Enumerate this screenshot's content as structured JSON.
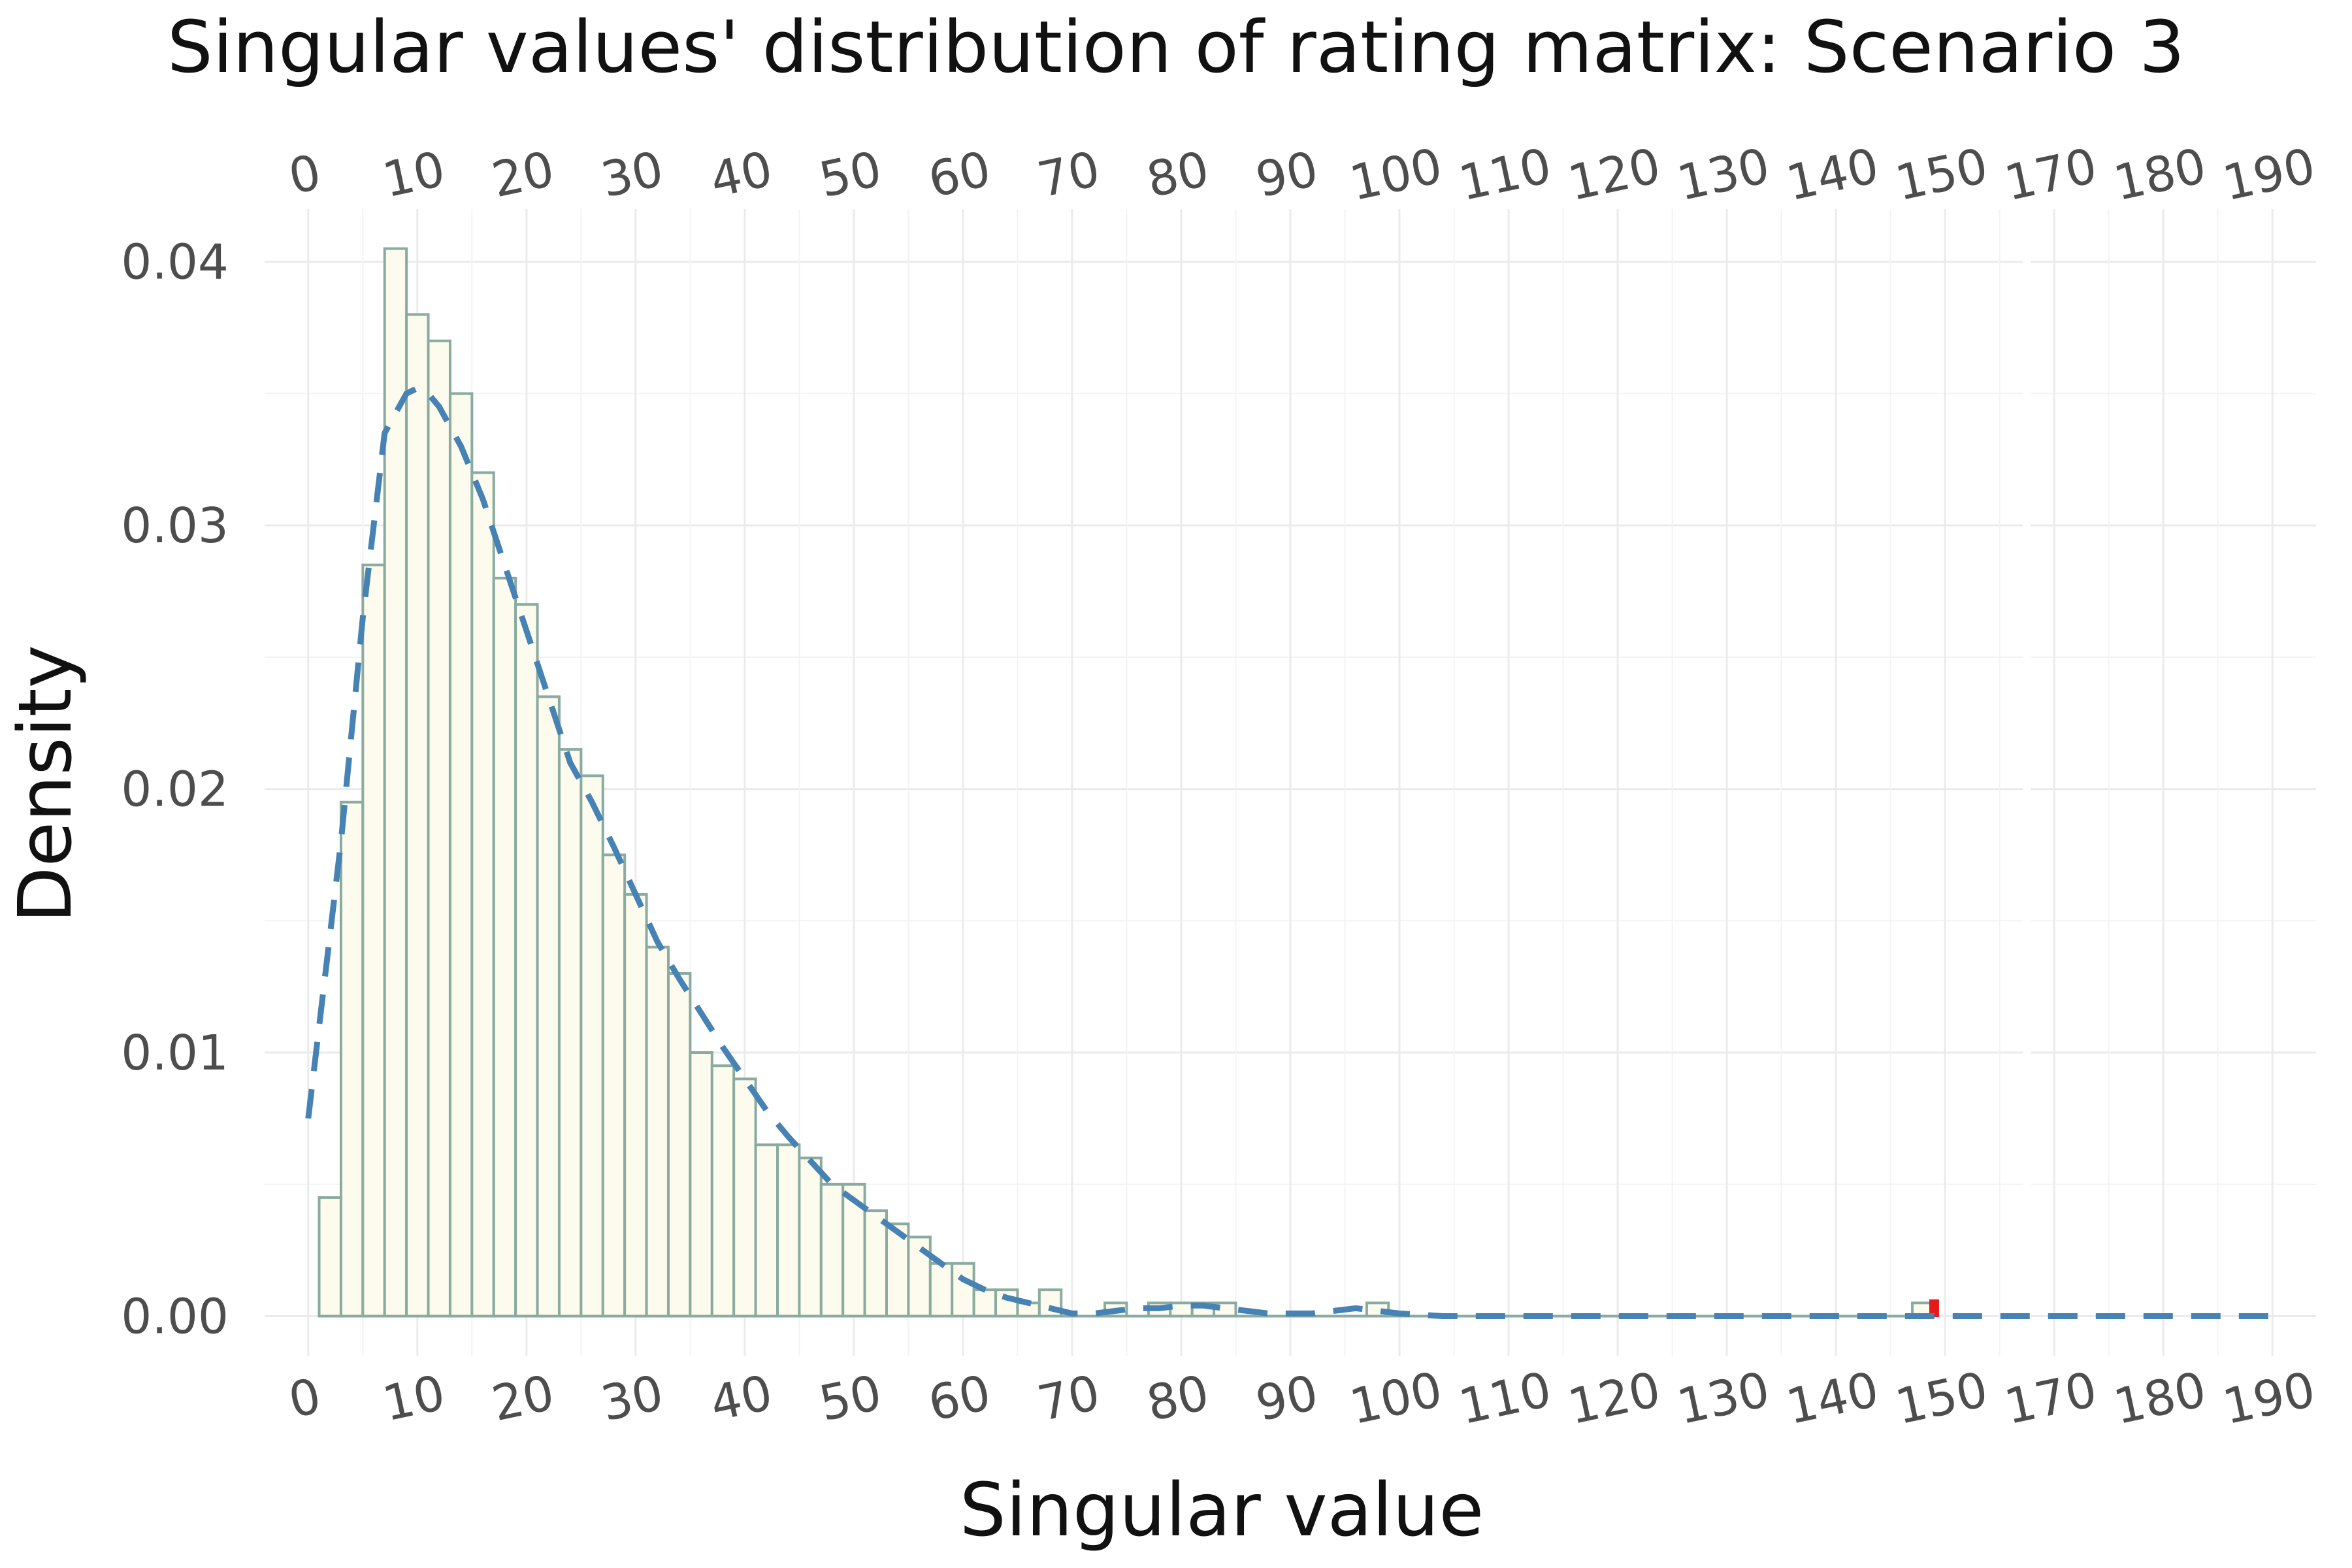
{
  "chart_data": {
    "type": "bar",
    "title": "Singular values' distribution of rating matrix: Scenario 3",
    "xlabel": "Singular value",
    "ylabel": "Density",
    "ylim": [
      -0.0015,
      0.042
    ],
    "y_ticks": [
      "0.00",
      "0.01",
      "0.02",
      "0.03",
      "0.04"
    ],
    "y_tick_values": [
      0,
      0.01,
      0.02,
      0.03,
      0.04
    ],
    "x_ticks": [
      "0",
      "10",
      "20",
      "30",
      "40",
      "50",
      "60",
      "70",
      "80",
      "90",
      "100",
      "110",
      "120",
      "130",
      "140",
      "150",
      "170",
      "180",
      "190"
    ],
    "x_tick_positions": [
      0,
      10,
      20,
      30,
      40,
      50,
      60,
      70,
      80,
      90,
      100,
      110,
      120,
      130,
      140,
      150,
      160,
      170,
      180
    ],
    "x_ticks_repeated_on_top": true,
    "axis_break_between": [
      "150",
      "170"
    ],
    "grid": true,
    "histogram": {
      "bin_width": 2,
      "first_bin_start": 1,
      "densities": [
        0.0045,
        0.0195,
        0.0285,
        0.0405,
        0.038,
        0.037,
        0.035,
        0.032,
        0.028,
        0.027,
        0.0235,
        0.0215,
        0.0205,
        0.0175,
        0.016,
        0.014,
        0.013,
        0.01,
        0.0095,
        0.009,
        0.0065,
        0.0065,
        0.006,
        0.005,
        0.005,
        0.004,
        0.0035,
        0.003,
        0.002,
        0.002,
        0.001,
        0.001,
        0.0005,
        0.001,
        0,
        0,
        0.0005,
        0,
        0.0005,
        0.0005,
        0.0005,
        0.0005,
        0,
        0,
        0,
        0,
        0,
        0,
        0.0005
      ],
      "outlier_bins": [
        {
          "x0": 147,
          "x1": 149,
          "density": 0.0005
        }
      ],
      "highlight": {
        "x": 149,
        "density": 0.0005,
        "color": "#e41a1c"
      }
    },
    "density_curve": {
      "name": "",
      "style": "dashed",
      "color": "#4682b4",
      "x": [
        0,
        3,
        5,
        7,
        9,
        10,
        11,
        12,
        14,
        16,
        18,
        20,
        22,
        24,
        26,
        28,
        30,
        32,
        34,
        36,
        38,
        40,
        42,
        44,
        46,
        48,
        50,
        52,
        54,
        56,
        58,
        60,
        62,
        64,
        66,
        68,
        70,
        72,
        74,
        76,
        78,
        80,
        82,
        84,
        86,
        88,
        90,
        92,
        94,
        96,
        98,
        100,
        104,
        110,
        120,
        130,
        140,
        150,
        160,
        170,
        180
      ],
      "y": [
        0.0075,
        0.018,
        0.0265,
        0.0335,
        0.035,
        0.0352,
        0.035,
        0.0345,
        0.033,
        0.031,
        0.0285,
        0.026,
        0.0235,
        0.021,
        0.0195,
        0.0178,
        0.016,
        0.0142,
        0.0128,
        0.0115,
        0.0102,
        0.009,
        0.0078,
        0.0068,
        0.0059,
        0.005,
        0.0044,
        0.0038,
        0.0032,
        0.0026,
        0.002,
        0.0014,
        0.001,
        0.0007,
        0.0005,
        0.0003,
        0.0001,
        0.0001,
        0.0002,
        0.0003,
        0.0003,
        0.0004,
        0.0004,
        0.0003,
        0.0002,
        0.0001,
        0.0001,
        0.0001,
        0.0002,
        0.0003,
        0.0002,
        0.0001,
        0.0,
        0.0,
        0.0,
        0.0,
        0.0,
        0.0,
        0.0,
        0.0,
        0.0
      ]
    },
    "colors": {
      "bar_fill": "#fdfbee",
      "bar_stroke": "#8aab9f",
      "curve": "#4682b4",
      "highlight": "#e41a1c",
      "grid": "#ebebeb"
    }
  }
}
